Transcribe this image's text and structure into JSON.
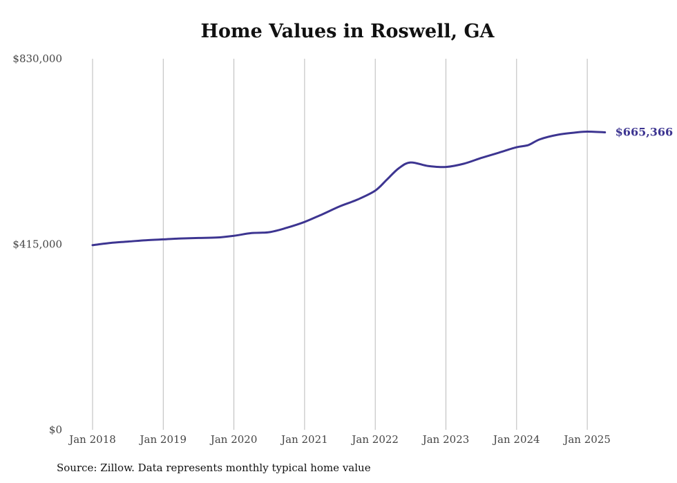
{
  "chart_data": {
    "type": "line",
    "title": "Home Values in Roswell, GA",
    "xlabel": "",
    "ylabel": "",
    "ylim": [
      0,
      830000
    ],
    "y_ticks": [
      "$0",
      "$415,000",
      "$830,000"
    ],
    "x_ticks": [
      "Jan 2018",
      "Jan 2019",
      "Jan 2020",
      "Jan 2021",
      "Jan 2022",
      "Jan 2023",
      "Jan 2024",
      "Jan 2025"
    ],
    "grid": "vertical",
    "line_color": "#3d3591",
    "end_label": "$665,366",
    "series": [
      {
        "x": [
          "2018-01",
          "2018-04",
          "2018-07",
          "2018-10",
          "2019-01",
          "2019-04",
          "2019-07",
          "2019-10",
          "2020-01",
          "2020-04",
          "2020-07",
          "2020-10",
          "2021-01",
          "2021-04",
          "2021-07",
          "2021-10",
          "2022-01",
          "2022-03",
          "2022-05",
          "2022-07",
          "2022-10",
          "2023-01",
          "2023-04",
          "2023-07",
          "2023-10",
          "2024-01",
          "2024-03",
          "2024-05",
          "2024-08",
          "2024-11",
          "2025-01",
          "2025-04"
        ],
        "values": [
          413000,
          418000,
          421000,
          424000,
          426000,
          428000,
          429000,
          430000,
          434000,
          440000,
          442000,
          452000,
          465000,
          482000,
          500000,
          515000,
          535000,
          560000,
          585000,
          598000,
          590000,
          588000,
          595000,
          608000,
          620000,
          632000,
          637000,
          650000,
          660000,
          665000,
          667000,
          665366
        ]
      }
    ]
  },
  "source_note": "Source: Zillow. Data represents monthly typical home value"
}
